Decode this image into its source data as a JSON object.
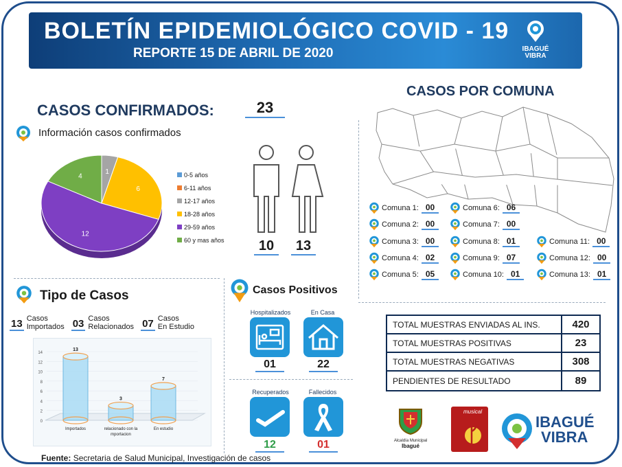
{
  "header": {
    "title": "BOLETÍN EPIDEMIOLÓGICO COVID - 19",
    "subtitle": "REPORTE 15 DE ABRIL DE 2020",
    "logo_text_1": "IBAGUÉ",
    "logo_text_2": "VIBRA"
  },
  "confirmed": {
    "label": "CASOS CONFIRMADOS:",
    "value": "23",
    "info_label": "Información casos confirmados",
    "male": "10",
    "female": "13"
  },
  "chart_data": {
    "type": "pie",
    "categories": [
      "0-5 años",
      "6-11 años",
      "12-17 años",
      "18-28 años",
      "29-59 años",
      "60 y mas años"
    ],
    "values": [
      0,
      0,
      1,
      6,
      12,
      4
    ],
    "colors": [
      "#5b9bd5",
      "#ed7d31",
      "#a5a5a5",
      "#ffc000",
      "#7e3fc3",
      "#70ad47"
    ]
  },
  "tipo": {
    "title": "Tipo de Casos",
    "items": [
      {
        "num": "13",
        "l1": "Casos",
        "l2": "Importados"
      },
      {
        "num": "03",
        "l1": "Casos",
        "l2": "Relacionados"
      },
      {
        "num": "07",
        "l1": "Casos",
        "l2": "En Estudio"
      }
    ]
  },
  "bar_chart": {
    "type": "bar",
    "categories": [
      "Importados",
      "relacionado con la importacion",
      "En estudio"
    ],
    "values": [
      13,
      3,
      7
    ],
    "yticks": [
      "0",
      "2",
      "4",
      "6",
      "8",
      "10",
      "12",
      "14"
    ],
    "ylim": [
      0,
      14
    ]
  },
  "positivos": {
    "title": "Casos Positivos",
    "hosp_label": "Hospitalizados",
    "hosp_value": "01",
    "casa_label": "En Casa",
    "casa_value": "22",
    "recup_label": "Recuperados",
    "recup_value": "12",
    "fall_label": "Fallecidos",
    "fall_value": "01"
  },
  "comuna": {
    "title": "CASOS POR COMUNA",
    "items": [
      {
        "label": "Comuna 1:",
        "value": "00"
      },
      {
        "label": "Comuna 2:",
        "value": "00"
      },
      {
        "label": "Comuna 3:",
        "value": "00"
      },
      {
        "label": "Comuna 4:",
        "value": "02"
      },
      {
        "label": "Comuna 5:",
        "value": "05"
      },
      {
        "label": "Comuna 6:",
        "value": "06"
      },
      {
        "label": "Comuna 7:",
        "value": "00"
      },
      {
        "label": "Comuna 8:",
        "value": "01"
      },
      {
        "label": "Comuna 9:",
        "value": "07"
      },
      {
        "label": "Comuna 10:",
        "value": "01"
      },
      {
        "label": "Comuna 11:",
        "value": "00"
      },
      {
        "label": "Comuna 12:",
        "value": "00"
      },
      {
        "label": "Comuna 13:",
        "value": "01"
      }
    ]
  },
  "muestras": [
    {
      "label": "TOTAL MUESTRAS ENVIADAS AL INS.",
      "value": "420"
    },
    {
      "label": "TOTAL MUESTRAS POSITIVAS",
      "value": "23"
    },
    {
      "label": "TOTAL MUESTRAS NEGATIVAS",
      "value": "308"
    },
    {
      "label": "PENDIENTES DE RESULTADO",
      "value": "89"
    }
  ],
  "footer": {
    "bold": "Fuente:",
    "text": "Secretaria de Salud Municipal, Investigación de casos"
  },
  "logos": {
    "alcaldia_1": "Alcaldía Municipal",
    "alcaldia_2": "Ibagué",
    "musical": "musical",
    "ibague_1": "IBAGUÉ",
    "ibague_2": "VIBRA"
  },
  "colors": {
    "accent": "#2196d8",
    "navy": "#1f3a5f",
    "green": "#2e9c48",
    "red": "#d32f2f"
  }
}
